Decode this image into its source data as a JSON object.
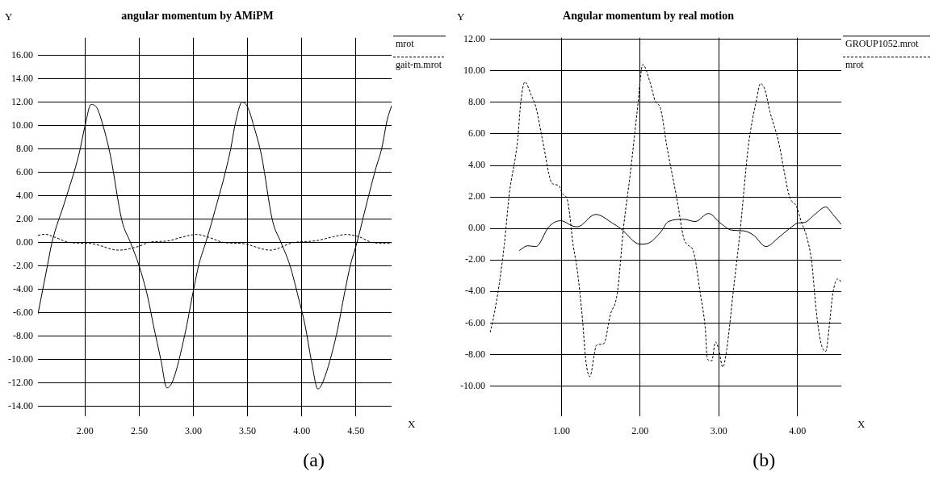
{
  "chart_data": [
    {
      "type": "line",
      "title": "angular momentum by AMiPM",
      "xlabel": "X",
      "ylabel": "Y",
      "xlim": [
        1.565,
        4.83
      ],
      "xticks": [
        {
          "value": 2,
          "label": "2.00"
        },
        {
          "value": 2.5,
          "label": "2.50"
        },
        {
          "value": 3,
          "label": "3.00"
        },
        {
          "value": 3.5,
          "label": "3.50"
        },
        {
          "value": 4,
          "label": "4.00"
        },
        {
          "value": 4.5,
          "label": "4.50"
        }
      ],
      "ylim": [
        -14.8,
        17.5
      ],
      "yticks": [
        {
          "value": -14,
          "label": "-14.00"
        },
        {
          "value": -12,
          "label": "-12.00"
        },
        {
          "value": -10,
          "label": "-10.00"
        },
        {
          "value": -8,
          "label": "-8.00"
        },
        {
          "value": -6,
          "label": "-6.00"
        },
        {
          "value": -4,
          "label": "-4.00"
        },
        {
          "value": -2,
          "label": "-2.00"
        },
        {
          "value": 0,
          "label": "0.00"
        },
        {
          "value": 2,
          "label": "2.00"
        },
        {
          "value": 4,
          "label": "4.00"
        },
        {
          "value": 6,
          "label": "6.00"
        },
        {
          "value": 8,
          "label": "8.00"
        },
        {
          "value": 10,
          "label": "10.00"
        },
        {
          "value": 12,
          "label": "12.00"
        },
        {
          "value": 14,
          "label": "14.00"
        },
        {
          "value": 16,
          "label": "16.00"
        }
      ],
      "grid": true,
      "legend": "top right",
      "marker": "none",
      "annotations": [
        "(a)"
      ],
      "series": [
        {
          "name": "mrot",
          "color": "#000000",
          "line_style": "solid",
          "x": [
            1.565,
            1.654,
            1.694,
            1.813,
            1.945,
            2.0,
            2.055,
            2.11,
            2.169,
            2.235,
            2.34,
            2.42,
            2.5,
            2.58,
            2.63,
            2.7,
            2.755,
            2.81,
            2.92,
            3.0,
            3.05,
            3.117,
            3.18,
            3.34,
            3.39,
            3.45,
            3.5,
            3.56,
            3.63,
            3.73,
            3.81,
            3.89,
            3.97,
            4.03,
            4.09,
            4.15,
            4.2,
            4.32,
            4.4,
            4.45,
            4.51,
            4.58,
            4.68,
            4.74,
            4.79,
            4.83
          ],
          "values": [
            -6.1,
            -1.9,
            0,
            3.5,
            7.6,
            10,
            11.8,
            11.5,
            9.9,
            7.4,
            1.9,
            0,
            -2,
            -4.7,
            -7,
            -10,
            -12.4,
            -11.8,
            -7.9,
            -4.1,
            -1.9,
            0.1,
            2.1,
            7.8,
            10.3,
            12,
            11.6,
            9.9,
            7.4,
            1.9,
            0,
            -1.9,
            -4.7,
            -7,
            -10.1,
            -12.5,
            -11.8,
            -7.9,
            -4.1,
            -1.9,
            0,
            2.6,
            6.2,
            8.1,
            10.5,
            11.7
          ]
        },
        {
          "name": "gait-m.mrot",
          "color": "#000000",
          "line_style": "dashed",
          "x": [
            1.565,
            1.63,
            1.71,
            1.87,
            2.05,
            2.31,
            2.5,
            2.6,
            2.76,
            2.89,
            3.03,
            3.13,
            3.29,
            3.45,
            3.71,
            3.92,
            4.13,
            4.29,
            4.41,
            4.53,
            4.66,
            4.83
          ],
          "values": [
            0.62,
            0.72,
            0.5,
            0,
            -0.07,
            -0.64,
            -0.3,
            0.05,
            0.14,
            0.46,
            0.7,
            0.5,
            0,
            -0.07,
            -0.64,
            0,
            0.16,
            0.5,
            0.7,
            0.5,
            0,
            -0.07
          ]
        }
      ]
    },
    {
      "type": "line",
      "title": "Angular momentum by real motion",
      "xlabel": "X",
      "ylabel": "Y",
      "xlim": [
        0.093,
        4.557
      ],
      "xticks": [
        {
          "value": 1,
          "label": "1.00"
        },
        {
          "value": 2,
          "label": "2.00"
        },
        {
          "value": 3,
          "label": "3.00"
        },
        {
          "value": 4,
          "label": "4.00"
        }
      ],
      "ylim": [
        -11.9,
        12.1
      ],
      "yticks": [
        {
          "value": -10,
          "label": "-10.00"
        },
        {
          "value": -8,
          "label": "-8.00"
        },
        {
          "value": -6,
          "label": "-6.00"
        },
        {
          "value": -4,
          "label": "-4.00"
        },
        {
          "value": -2,
          "label": "-2.00"
        },
        {
          "value": 0,
          "label": "0.00"
        },
        {
          "value": 2,
          "label": "2.00"
        },
        {
          "value": 4,
          "label": "4.00"
        },
        {
          "value": 6,
          "label": "6.00"
        },
        {
          "value": 8,
          "label": "8.00"
        },
        {
          "value": 10,
          "label": "10.00"
        },
        {
          "value": 12,
          "label": "12.00"
        }
      ],
      "grid": true,
      "legend": "top right",
      "marker": "none",
      "annotations": [
        "(b)"
      ],
      "series": [
        {
          "name": "GROUP1052.mrot",
          "color": "#000000",
          "line_style": "solid",
          "x": [
            0.464,
            0.57,
            0.675,
            0.844,
            0.99,
            1.14,
            1.2,
            1.435,
            1.645,
            1.75,
            2.0,
            2.085,
            2.26,
            2.36,
            2.55,
            2.7,
            2.87,
            3.017,
            3.165,
            3.31,
            3.44,
            3.6,
            3.755,
            3.9,
            4.01,
            4.09,
            4.22,
            4.36,
            4.45,
            4.557
          ],
          "values": [
            -1.4,
            -1.1,
            -1.15,
            0.13,
            0.49,
            0.16,
            0.1,
            0.89,
            0.35,
            0,
            -1,
            -0.97,
            -0.24,
            0.44,
            0.58,
            0.44,
            0.95,
            0.35,
            -0.11,
            -0.15,
            -0.42,
            -1.15,
            -0.6,
            0,
            0.35,
            0.38,
            0.89,
            1.36,
            0.89,
            0.25
          ]
        },
        {
          "name": "mrot",
          "color": "#000000",
          "line_style": "dashed",
          "x": [
            0.093,
            0.127,
            0.21,
            0.274,
            0.338,
            0.443,
            0.485,
            0.536,
            0.612,
            0.675,
            0.76,
            0.865,
            0.907,
            0.97,
            1.013,
            1.076,
            1.15,
            1.2,
            1.266,
            1.31,
            1.36,
            1.447,
            1.54,
            1.62,
            1.71,
            1.79,
            1.878,
            1.962,
            2.034,
            2.13,
            2.19,
            2.26,
            2.34,
            2.47,
            2.553,
            2.595,
            2.68,
            2.764,
            2.827,
            2.856,
            2.91,
            2.958,
            3.0,
            3.05,
            3.1,
            3.186,
            3.27,
            3.375,
            3.48,
            3.53,
            3.586,
            3.65,
            3.755,
            3.9,
            3.987,
            4.05,
            4.11,
            4.18,
            4.24,
            4.3,
            4.36,
            4.4,
            4.45,
            4.515,
            4.557
          ],
          "values": [
            -6.6,
            -5.9,
            -3.5,
            -1,
            2.2,
            5.6,
            8.1,
            9.3,
            8.5,
            7.7,
            5.6,
            3,
            2.8,
            2.7,
            2.2,
            1.8,
            -1.1,
            -2.6,
            -5.7,
            -8.4,
            -9.4,
            -7.4,
            -7.3,
            -5.5,
            -4.1,
            0.1,
            3.6,
            7.4,
            10.4,
            9.2,
            8.1,
            7.6,
            5.2,
            1.8,
            -0.6,
            -1,
            -1.5,
            -4.1,
            -6.3,
            -8.3,
            -8.4,
            -7.2,
            -7.7,
            -8.8,
            -7.7,
            -3.9,
            -0.2,
            5.2,
            8.2,
            9.2,
            8.8,
            7.4,
            5.6,
            2,
            1.4,
            0.4,
            -0.4,
            -2.1,
            -5.3,
            -7.3,
            -7.8,
            -6.4,
            -4.1,
            -3.2,
            -3.4
          ]
        }
      ]
    }
  ]
}
